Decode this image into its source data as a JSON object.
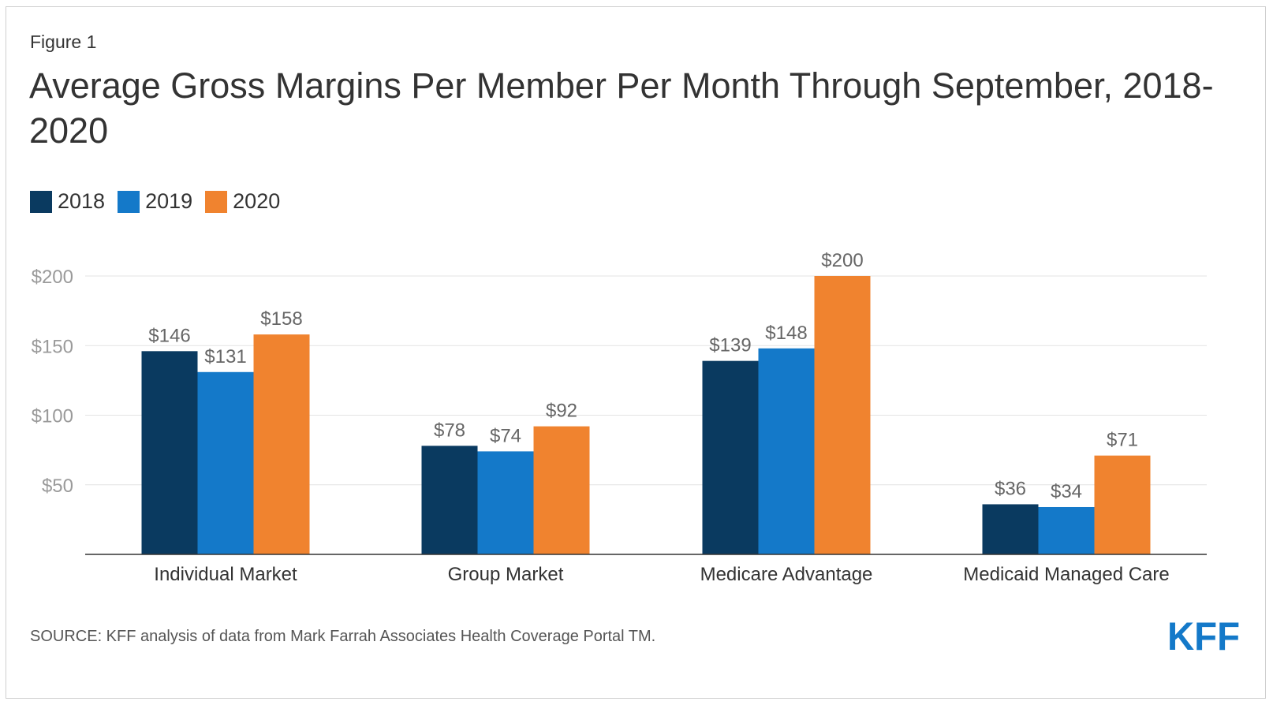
{
  "figure_label": "Figure 1",
  "title": "Average Gross Margins Per Member Per Month Through September, 2018-2020",
  "source": "SOURCE: KFF analysis of data from Mark Farrah Associates Health Coverage Portal TM.",
  "logo_text": "KFF",
  "colors": {
    "2018": "#0a3a60",
    "2019": "#1479c9",
    "2020": "#f0832f",
    "logo": "#1479c9"
  },
  "chart_data": {
    "type": "bar",
    "title": "Average Gross Margins Per Member Per Month Through September, 2018-2020",
    "categories": [
      "Individual Market",
      "Group Market",
      "Medicare Advantage",
      "Medicaid Managed Care"
    ],
    "series": [
      {
        "name": "2018",
        "color": "#0a3a60",
        "values": [
          146,
          78,
          139,
          36
        ],
        "labels": [
          "$146",
          "$78",
          "$139",
          "$36"
        ]
      },
      {
        "name": "2019",
        "color": "#1479c9",
        "values": [
          131,
          74,
          148,
          34
        ],
        "labels": [
          "$131",
          "$74",
          "$148",
          "$34"
        ]
      },
      {
        "name": "2020",
        "color": "#f0832f",
        "values": [
          158,
          92,
          200,
          71
        ],
        "labels": [
          "$158",
          "$92",
          "$200",
          "$71"
        ]
      }
    ],
    "y_ticks": [
      50,
      100,
      150,
      200
    ],
    "y_tick_labels": [
      "$50",
      "$100",
      "$150",
      "$200"
    ],
    "ylim": [
      0,
      200
    ],
    "grid": true,
    "legend_position": "top-left"
  }
}
